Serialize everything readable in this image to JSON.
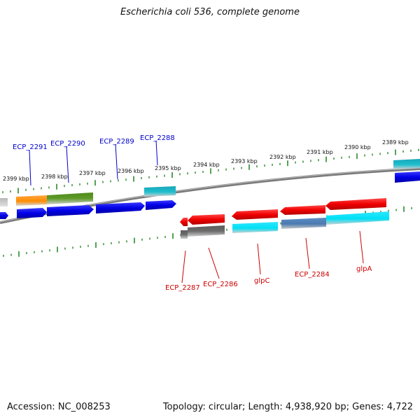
{
  "title": "Escherichia coli 536, complete genome",
  "footer": {
    "accession": "Accession: NC_008253",
    "summary": "Topology: circular; Length: 4,938,920 bp; Genes: 4,722"
  },
  "ruler_labels": [
    "2399 kbp",
    "2398 kbp",
    "2397 kbp",
    "2396 kbp",
    "2395 kbp",
    "2394 kbp",
    "2393 kbp",
    "2392 kbp",
    "2391 kbp",
    "2390 kbp",
    "2389 kbp"
  ],
  "forward_labels": [
    "ECP_2291",
    "ECP_2290",
    "ECP_2289",
    "ECP_2288"
  ],
  "reverse_labels": [
    "ECP_2287",
    "ECP_2286",
    "glpC",
    "ECP_2284",
    "glpA"
  ],
  "colors": {
    "forward_label": "#0000cc",
    "reverse_label": "#cc0000",
    "tick": "#2a8a2a",
    "backbone": "#7a7a7a",
    "forward_gene": "#0000ee",
    "reverse_gene": "#ee0000"
  }
}
